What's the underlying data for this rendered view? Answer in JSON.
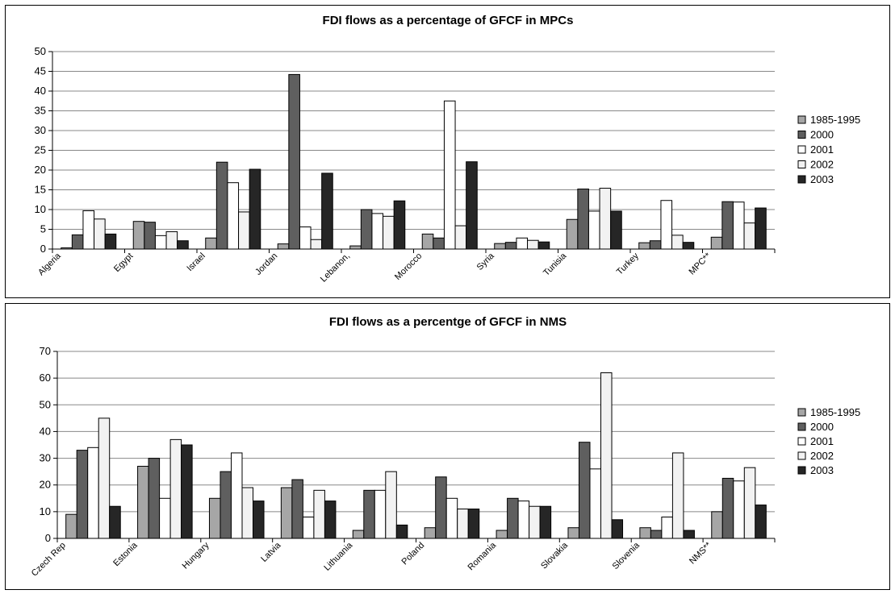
{
  "chart_data": [
    {
      "type": "bar",
      "title": "FDI flows as a percentage of GFCF in MPCs",
      "categories": [
        "Algeria",
        "Egypt",
        "Israel",
        "Jordan",
        "Lebanon,",
        "Morocco",
        "Syria",
        "Tunisia",
        "Turkey",
        "MPC**"
      ],
      "series": [
        {
          "name": "1985-1995",
          "values": [
            0.3,
            7.0,
            2.8,
            1.3,
            0.8,
            3.8,
            1.4,
            7.5,
            1.6,
            3.0
          ]
        },
        {
          "name": "2000",
          "values": [
            3.6,
            6.8,
            22.0,
            44.2,
            10.0,
            2.8,
            1.7,
            15.2,
            2.1,
            12.0
          ]
        },
        {
          "name": "2001",
          "values": [
            9.7,
            3.4,
            16.8,
            5.6,
            9.0,
            37.5,
            2.8,
            9.6,
            12.3,
            11.9
          ]
        },
        {
          "name": "2002",
          "values": [
            7.6,
            4.4,
            9.4,
            2.4,
            8.3,
            5.9,
            2.2,
            15.4,
            3.5,
            6.6
          ]
        },
        {
          "name": "2003",
          "values": [
            3.8,
            2.1,
            20.2,
            19.2,
            12.2,
            22.1,
            1.8,
            9.6,
            1.7,
            10.4
          ]
        }
      ],
      "series_colors": [
        "#a6a6a6",
        "#5f5f5f",
        "#ffffff",
        "#f2f2f2",
        "#262626"
      ],
      "ylim": [
        0,
        50
      ],
      "yticks": [
        "0",
        "5",
        "10",
        "15",
        "20",
        "25",
        "30",
        "35",
        "40",
        "45",
        "50"
      ],
      "grid": true,
      "legend": "right"
    },
    {
      "type": "bar",
      "title": "FDI flows as a percentge of GFCF in NMS",
      "categories": [
        "Czech Rep",
        "Estonia",
        "Hungary",
        "Latvia",
        "Lithuania",
        "Poland",
        "Romania",
        "Slovakia",
        "Slovenia",
        "NMS**"
      ],
      "series": [
        {
          "name": "1985-1995",
          "values": [
            9,
            27,
            15,
            19,
            3,
            4,
            3,
            4,
            4,
            10
          ]
        },
        {
          "name": "2000",
          "values": [
            33,
            30,
            25,
            22,
            18,
            23,
            15,
            36,
            3,
            22.5
          ]
        },
        {
          "name": "2001",
          "values": [
            34,
            15,
            32,
            8,
            18,
            15,
            14,
            26,
            8,
            21.5
          ]
        },
        {
          "name": "2002",
          "values": [
            45,
            37,
            19,
            18,
            25,
            11,
            12,
            62,
            32,
            26.5
          ]
        },
        {
          "name": "2003",
          "values": [
            12,
            35,
            14,
            14,
            5,
            11,
            12,
            7,
            3,
            12.5
          ]
        }
      ],
      "series_colors": [
        "#a6a6a6",
        "#5f5f5f",
        "#ffffff",
        "#f2f2f2",
        "#262626"
      ],
      "ylim": [
        0,
        70
      ],
      "yticks": [
        "0",
        "10",
        "20",
        "30",
        "40",
        "50",
        "60",
        "70"
      ],
      "grid": true,
      "legend": "right"
    }
  ]
}
